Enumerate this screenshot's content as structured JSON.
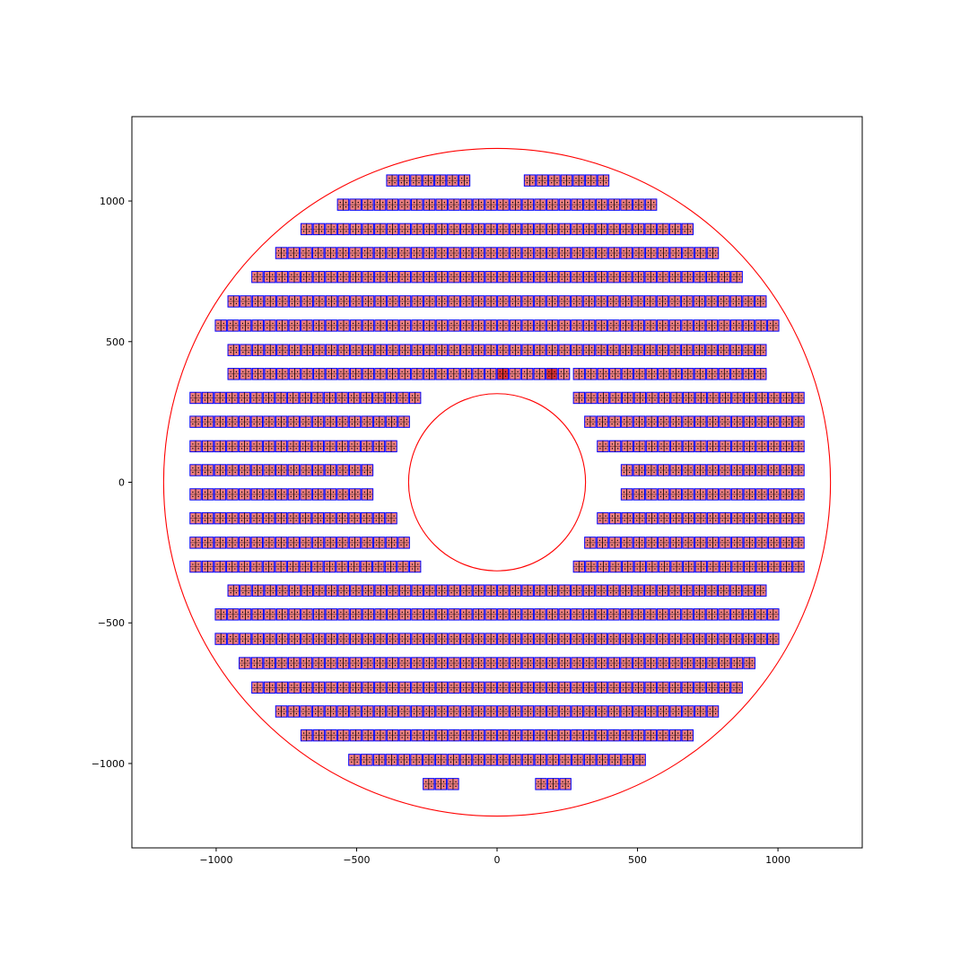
{
  "chart_data": {
    "type": "scatter",
    "title": "",
    "xlabel": "",
    "ylabel": "",
    "xlim": [
      -1300,
      1300
    ],
    "ylim": [
      -1300,
      1300
    ],
    "grid": false,
    "aspect": "equal",
    "xticks": [
      {
        "value": -1000,
        "label": "−1000"
      },
      {
        "value": -500,
        "label": "−500"
      },
      {
        "value": 0,
        "label": "0"
      },
      {
        "value": 500,
        "label": "500"
      },
      {
        "value": 1000,
        "label": "1000"
      }
    ],
    "yticks": [
      {
        "value": 1000,
        "label": "1000"
      },
      {
        "value": 500,
        "label": "500"
      },
      {
        "value": 0,
        "label": "0"
      },
      {
        "value": -500,
        "label": "−500"
      },
      {
        "value": -1000,
        "label": "−1000"
      }
    ],
    "circles": [
      {
        "name": "outer-boundary",
        "cx": 0,
        "cy": 0,
        "r": 1187,
        "color": "#ff0000"
      },
      {
        "name": "inner-boundary",
        "cx": 0,
        "cy": 0,
        "r": 315,
        "color": "#ff0000"
      }
    ],
    "module": {
      "width": 43.5,
      "height": 43.5,
      "cells_per_module": 2,
      "module_color": "#0000ff",
      "cell_color": "#000000",
      "fill": "#f08080",
      "highlight_fill": "#dd3333"
    },
    "rows": [
      {
        "y": 1073,
        "segments": [
          [
            -395,
            -95
          ],
          [
            95,
            400
          ]
        ]
      },
      {
        "y": 987,
        "segments": [
          [
            -570,
            0
          ],
          [
            0,
            570
          ]
        ]
      },
      {
        "y": 900,
        "segments": [
          [
            -700,
            0
          ],
          [
            0,
            700
          ]
        ]
      },
      {
        "y": 815,
        "segments": [
          [
            -790,
            0
          ],
          [
            0,
            790
          ]
        ]
      },
      {
        "y": 730,
        "segments": [
          [
            -875,
            0
          ],
          [
            0,
            875
          ]
        ]
      },
      {
        "y": 643,
        "segments": [
          [
            -960,
            0
          ],
          [
            0,
            960
          ]
        ]
      },
      {
        "y": 557,
        "segments": [
          [
            -1005,
            0
          ],
          [
            0,
            1005
          ]
        ]
      },
      {
        "y": 470,
        "segments": [
          [
            -960,
            0
          ],
          [
            0,
            960
          ]
        ]
      },
      {
        "y": 385,
        "segments": [
          [
            -960,
            260
          ],
          [
            270,
            960
          ]
        ]
      },
      {
        "y": 300,
        "segments": [
          [
            -1095,
            -270
          ],
          [
            270,
            1095
          ]
        ]
      },
      {
        "y": 215,
        "segments": [
          [
            -1095,
            -310
          ],
          [
            310,
            1095
          ]
        ]
      },
      {
        "y": 128,
        "segments": [
          [
            -1095,
            -355
          ],
          [
            355,
            1095
          ]
        ]
      },
      {
        "y": 43,
        "segments": [
          [
            -1095,
            -440
          ],
          [
            440,
            1095
          ]
        ]
      },
      {
        "y": -43,
        "segments": [
          [
            -1095,
            -440
          ],
          [
            440,
            1095
          ]
        ]
      },
      {
        "y": -128,
        "segments": [
          [
            -1095,
            -355
          ],
          [
            355,
            1095
          ]
        ]
      },
      {
        "y": -215,
        "segments": [
          [
            -1095,
            -310
          ],
          [
            310,
            1095
          ]
        ]
      },
      {
        "y": -300,
        "segments": [
          [
            -1095,
            -270
          ],
          [
            270,
            1095
          ]
        ]
      },
      {
        "y": -385,
        "segments": [
          [
            -960,
            0
          ],
          [
            0,
            960
          ]
        ]
      },
      {
        "y": -470,
        "segments": [
          [
            -1005,
            0
          ],
          [
            0,
            1005
          ]
        ]
      },
      {
        "y": -557,
        "segments": [
          [
            -1005,
            0
          ],
          [
            0,
            1005
          ]
        ]
      },
      {
        "y": -643,
        "segments": [
          [
            -920,
            0
          ],
          [
            0,
            920
          ]
        ]
      },
      {
        "y": -730,
        "segments": [
          [
            -875,
            0
          ],
          [
            0,
            875
          ]
        ]
      },
      {
        "y": -815,
        "segments": [
          [
            -790,
            0
          ],
          [
            0,
            790
          ]
        ]
      },
      {
        "y": -900,
        "segments": [
          [
            -700,
            0
          ],
          [
            0,
            700
          ]
        ]
      },
      {
        "y": -987,
        "segments": [
          [
            -530,
            0
          ],
          [
            0,
            530
          ]
        ]
      },
      {
        "y": -1073,
        "segments": [
          [
            -265,
            -135
          ],
          [
            135,
            265
          ]
        ]
      }
    ],
    "highlights": [
      {
        "x": 20,
        "y": 385
      },
      {
        "x": 190,
        "y": 385
      }
    ]
  }
}
